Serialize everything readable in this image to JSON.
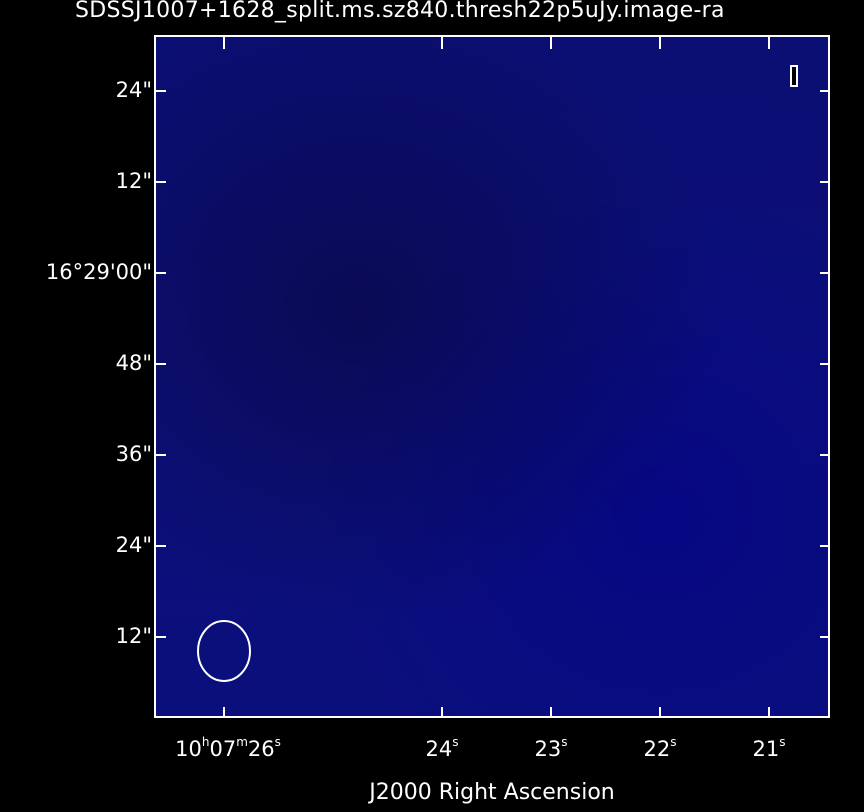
{
  "title": "SDSSJ1007+1628_split.ms.sz840.thresh22p5uJy.image-ra",
  "colors": {
    "background": "#000000",
    "image_fill": "#0c0f78",
    "axes": "#ffffff"
  },
  "y_axis": {
    "tick_labels": [
      "24\"",
      "12\"",
      "16°29'00\"",
      "48\"",
      "36\"",
      "24\"",
      "12\""
    ]
  },
  "x_axis": {
    "tick_labels": [
      {
        "main": "10",
        "h": "h",
        "m_val": "07",
        "m": "m",
        "s_val": "26",
        "s": "s"
      },
      {
        "main": "24",
        "s": "s"
      },
      {
        "main": "23",
        "s": "s"
      },
      {
        "main": "22",
        "s": "s"
      },
      {
        "main": "21",
        "s": "s"
      }
    ],
    "title": "J2000 Right Ascension"
  },
  "overlays": {
    "beam_icon": "beam-ellipse",
    "stokes_icon": "stokes-indicator"
  }
}
